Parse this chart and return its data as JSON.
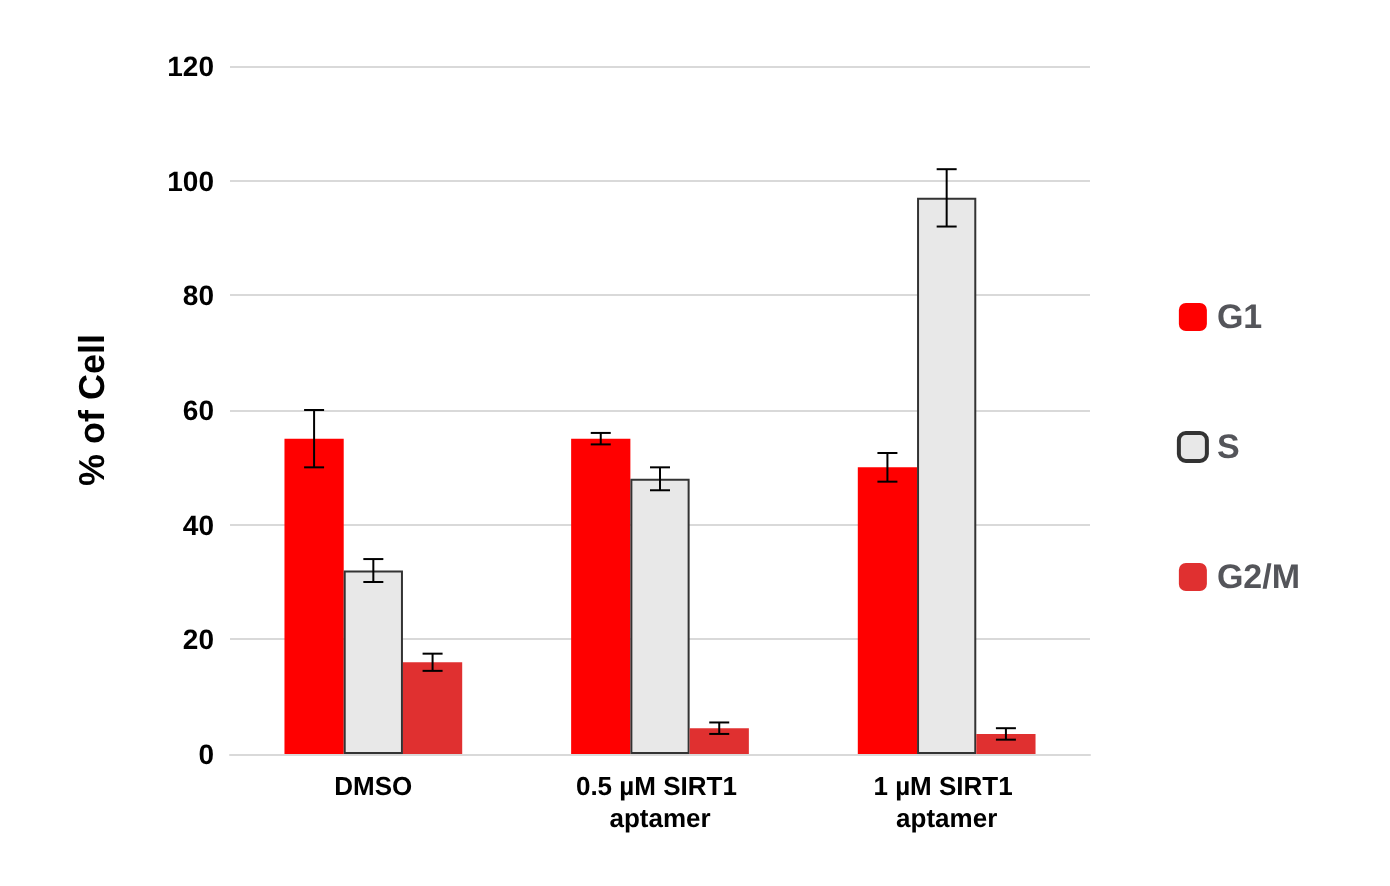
{
  "chart_data": {
    "type": "bar",
    "ylabel": "% of Cell",
    "categories": [
      "DMSO",
      "0.5 µM SIRT1 aptamer",
      "1 µM SIRT1 aptamer"
    ],
    "series": [
      {
        "name": "G1",
        "color": "#ff0000",
        "values": [
          55,
          55,
          50
        ],
        "errors": [
          5,
          1,
          2.5
        ]
      },
      {
        "name": "S",
        "color": "#e8e8e8",
        "values": [
          32,
          48,
          97
        ],
        "errors": [
          2,
          2,
          5
        ]
      },
      {
        "name": "G2/M",
        "color": "#e03030",
        "values": [
          16,
          4.5,
          3.5
        ],
        "errors": [
          1.5,
          1,
          1
        ]
      }
    ],
    "ylim": [
      0,
      120
    ],
    "yticks": [
      0,
      20,
      40,
      60,
      80,
      100,
      120
    ],
    "grid": "y",
    "legend": "right"
  }
}
